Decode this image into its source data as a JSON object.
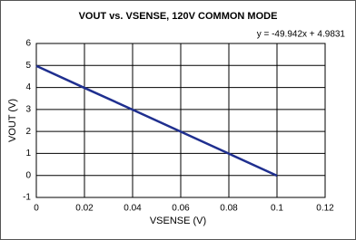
{
  "chart_data": {
    "type": "line",
    "title": "VOUT vs. VSENSE, 120V COMMON MODE",
    "annotation": "y = -49.942x + 4.9831",
    "x_label": "VSENSE (V)",
    "y_label": "VOUT (V)",
    "x": [
      0,
      0.02,
      0.04,
      0.06,
      0.08,
      0.1
    ],
    "series": [
      {
        "name": "VOUT",
        "color": "#1f2f8f",
        "values": [
          4.98,
          3.98,
          2.99,
          1.99,
          0.99,
          -0.01
        ]
      }
    ],
    "xlim": [
      0,
      0.12
    ],
    "xticks": [
      0,
      0.02,
      0.04,
      0.06,
      0.08,
      0.1,
      0.12
    ],
    "ylim": [
      -1,
      6
    ],
    "yticks": [
      -1,
      0,
      1,
      2,
      3,
      4,
      5,
      6
    ],
    "grid": true
  }
}
